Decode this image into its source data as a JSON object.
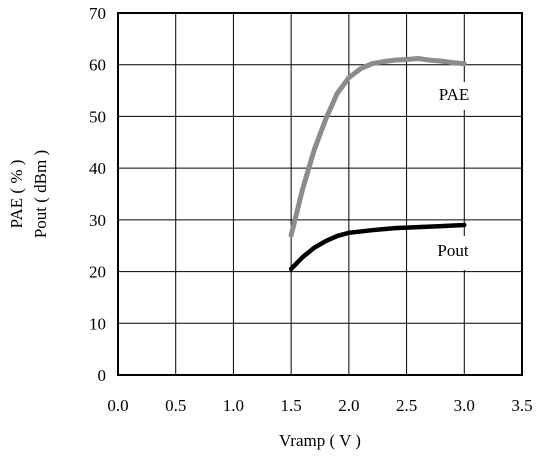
{
  "chart_data": {
    "type": "line",
    "xlabel": "Vramp ( V )",
    "ylabel_lines": [
      "PAE ( % )",
      "Pout ( dBm )"
    ],
    "xlim": [
      0,
      3.5
    ],
    "ylim": [
      0,
      70
    ],
    "x_ticks": [
      "0.0",
      "0.5",
      "1.0",
      "1.5",
      "2.0",
      "2.5",
      "3.0",
      "3.5"
    ],
    "y_ticks": [
      "0",
      "10",
      "20",
      "30",
      "40",
      "50",
      "60",
      "70"
    ],
    "grid": true,
    "series": [
      {
        "name": "PAE",
        "color": "#8c8c8c",
        "x": [
          1.5,
          1.6,
          1.7,
          1.8,
          1.9,
          2.0,
          2.1,
          2.2,
          2.3,
          2.4,
          2.5,
          2.6,
          2.7,
          2.8,
          2.9,
          3.0
        ],
        "y": [
          27,
          36,
          43.5,
          49.5,
          54.5,
          57.5,
          59.2,
          60.2,
          60.6,
          60.9,
          61.0,
          61.2,
          60.9,
          60.7,
          60.4,
          60.2
        ]
      },
      {
        "name": "Pout",
        "color": "#000000",
        "x": [
          1.5,
          1.6,
          1.7,
          1.8,
          1.9,
          2.0,
          2.2,
          2.4,
          2.6,
          2.8,
          3.0
        ],
        "y": [
          20.5,
          22.8,
          24.6,
          25.9,
          26.9,
          27.5,
          28.0,
          28.4,
          28.6,
          28.8,
          29.0
        ]
      }
    ]
  }
}
